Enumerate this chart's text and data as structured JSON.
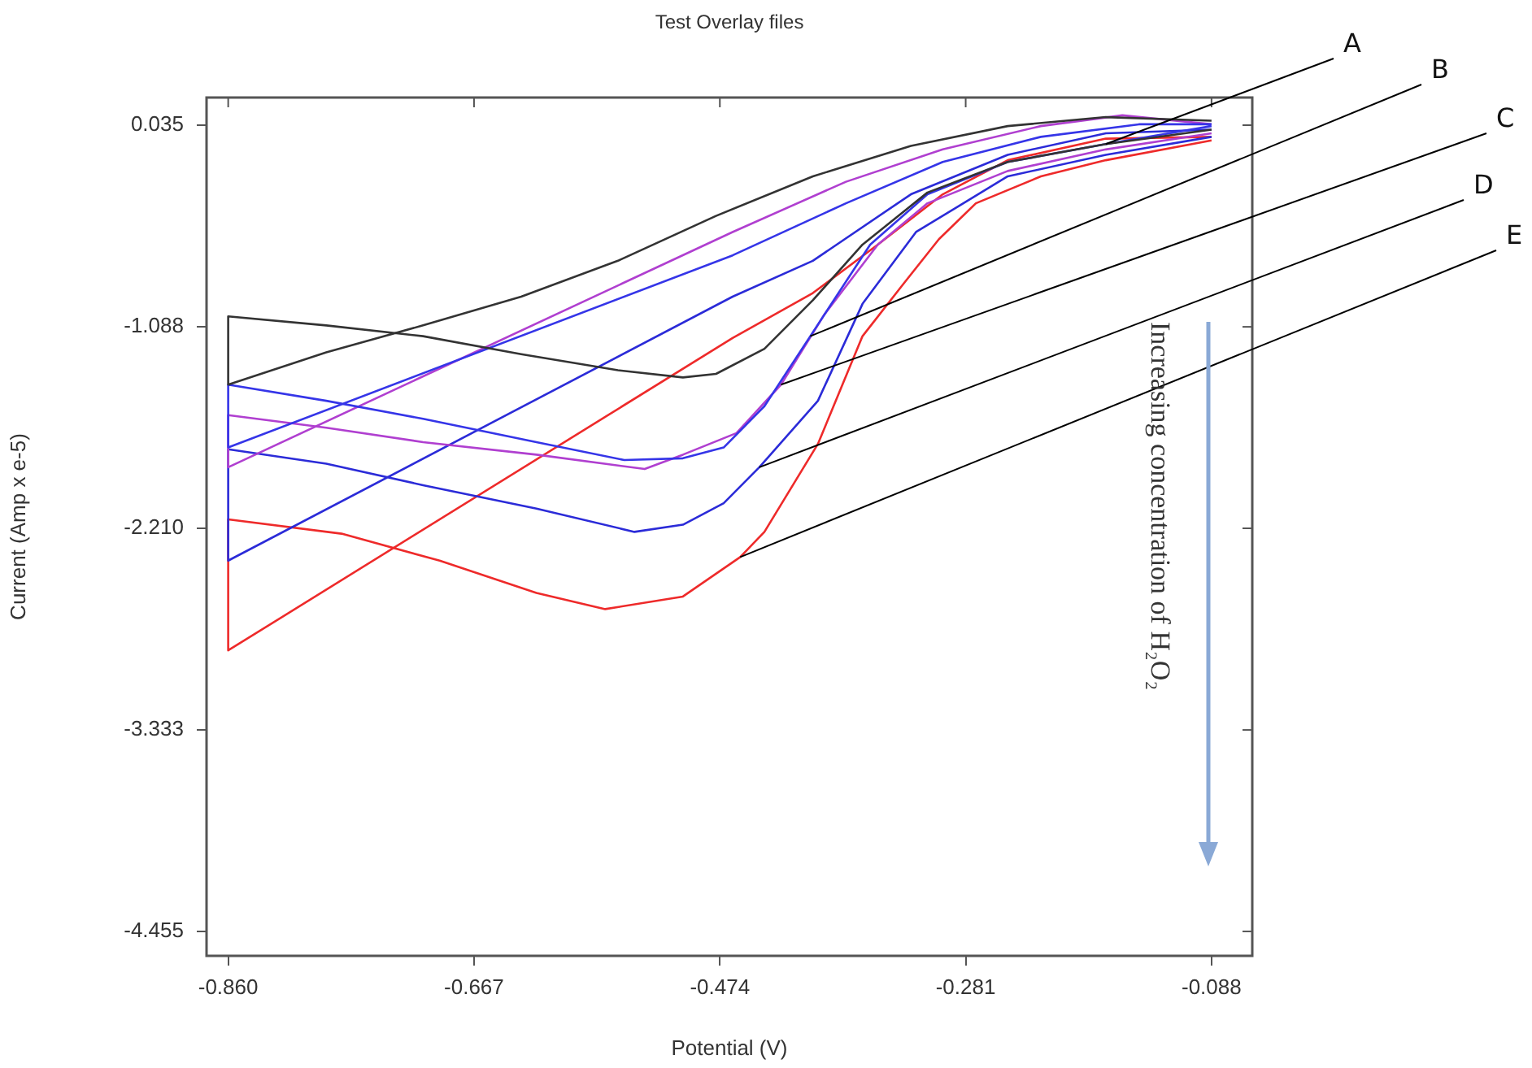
{
  "chart_data": {
    "type": "line",
    "title": "Test Overlay files",
    "xlabel": "Potential (V)",
    "ylabel": "Current (Amp x e-5)",
    "xlim": [
      -0.877,
      -0.056
    ],
    "ylim": [
      -4.591,
      0.189
    ],
    "xticks": [
      {
        "value": -0.86,
        "label": "-0.860"
      },
      -0.667,
      -0.474,
      -0.281,
      -0.088
    ],
    "yticks": [
      0.035,
      -1.088,
      {
        "value": -2.21,
        "label": "-2.210"
      },
      -3.333,
      -4.455
    ],
    "marker": "none",
    "line_style": "solid",
    "series": [
      {
        "color": "#333333",
        "x": [
          -0.088,
          -0.171,
          -0.248,
          -0.311,
          -0.362,
          -0.401,
          -0.439,
          -0.477,
          -0.503,
          -0.554,
          -0.63,
          -0.707,
          -0.783,
          -0.86,
          -0.86,
          -0.783,
          -0.707,
          -0.63,
          -0.554,
          -0.477,
          -0.401,
          -0.324,
          -0.248,
          -0.171,
          -0.088
        ],
        "values": [
          0.01,
          -0.07,
          -0.17,
          -0.34,
          -0.63,
          -0.94,
          -1.21,
          -1.35,
          -1.37,
          -1.33,
          -1.24,
          -1.14,
          -1.08,
          -1.03,
          -1.41,
          -1.23,
          -1.08,
          -0.92,
          -0.72,
          -0.47,
          -0.25,
          -0.08,
          0.03,
          0.08,
          0.06
        ]
      },
      {
        "color": "#3535e8",
        "x": [
          -0.088,
          -0.171,
          -0.248,
          -0.311,
          -0.356,
          -0.403,
          -0.439,
          -0.471,
          -0.503,
          -0.549,
          -0.618,
          -0.707,
          -0.783,
          -0.86,
          -0.86,
          -0.464,
          -0.375,
          -0.299,
          -0.222,
          -0.145,
          -0.088
        ],
        "values": [
          0.03,
          -0.07,
          -0.17,
          -0.35,
          -0.63,
          -1.14,
          -1.53,
          -1.76,
          -1.82,
          -1.83,
          -1.73,
          -1.6,
          -1.5,
          -1.41,
          -1.76,
          -0.69,
          -0.4,
          -0.17,
          -0.03,
          0.04,
          0.04
        ]
      },
      {
        "color": "#b03fd0",
        "x": [
          -0.088,
          -0.171,
          -0.248,
          -0.311,
          -0.35,
          -0.392,
          -0.426,
          -0.461,
          -0.503,
          -0.533,
          -0.618,
          -0.707,
          -0.783,
          -0.86,
          -0.86,
          -0.464,
          -0.375,
          -0.299,
          -0.222,
          -0.158,
          -0.088
        ],
        "values": [
          -0.01,
          -0.1,
          -0.22,
          -0.4,
          -0.63,
          -1.02,
          -1.41,
          -1.68,
          -1.8,
          -1.88,
          -1.8,
          -1.73,
          -1.65,
          -1.58,
          -1.87,
          -0.56,
          -0.28,
          -0.1,
          0.03,
          0.09,
          0.04
        ]
      },
      {
        "color": "#2b2bd8",
        "x": [
          -0.088,
          -0.171,
          -0.248,
          -0.32,
          -0.362,
          -0.397,
          -0.443,
          -0.471,
          -0.503,
          -0.541,
          -0.618,
          -0.707,
          -0.783,
          -0.86,
          -0.86,
          -0.464,
          -0.401,
          -0.324,
          -0.248,
          -0.171,
          -0.088
        ],
        "values": [
          -0.03,
          -0.13,
          -0.25,
          -0.56,
          -0.96,
          -1.5,
          -1.87,
          -2.07,
          -2.19,
          -2.23,
          -2.1,
          -1.97,
          -1.85,
          -1.77,
          -2.39,
          -0.92,
          -0.72,
          -0.35,
          -0.13,
          -0.01,
          0.01
        ]
      },
      {
        "color": "#ee2a2a",
        "x": [
          -0.088,
          -0.171,
          -0.222,
          -0.273,
          -0.302,
          -0.33,
          -0.362,
          -0.397,
          -0.439,
          -0.458,
          -0.503,
          -0.564,
          -0.618,
          -0.694,
          -0.771,
          -0.86,
          -0.86,
          -0.464,
          -0.401,
          -0.35,
          -0.299,
          -0.248,
          -0.171,
          -0.088
        ],
        "values": [
          -0.05,
          -0.16,
          -0.25,
          -0.4,
          -0.6,
          -0.85,
          -1.14,
          -1.74,
          -2.23,
          -2.37,
          -2.59,
          -2.66,
          -2.57,
          -2.39,
          -2.24,
          -2.16,
          -2.89,
          -1.15,
          -0.9,
          -0.63,
          -0.35,
          -0.16,
          -0.04,
          -0.03
        ]
      }
    ],
    "annotations": [
      {
        "text": "A",
        "x": -0.171,
        "y": -0.07
      },
      {
        "text": "B",
        "x": -0.403,
        "y": -1.14
      },
      {
        "text": "C",
        "x": -0.426,
        "y": -1.41
      },
      {
        "text": "D",
        "x": -0.443,
        "y": -1.87
      },
      {
        "text": "E",
        "x": -0.458,
        "y": -2.37
      },
      "Increasing concentration of H₂O₂"
    ]
  }
}
